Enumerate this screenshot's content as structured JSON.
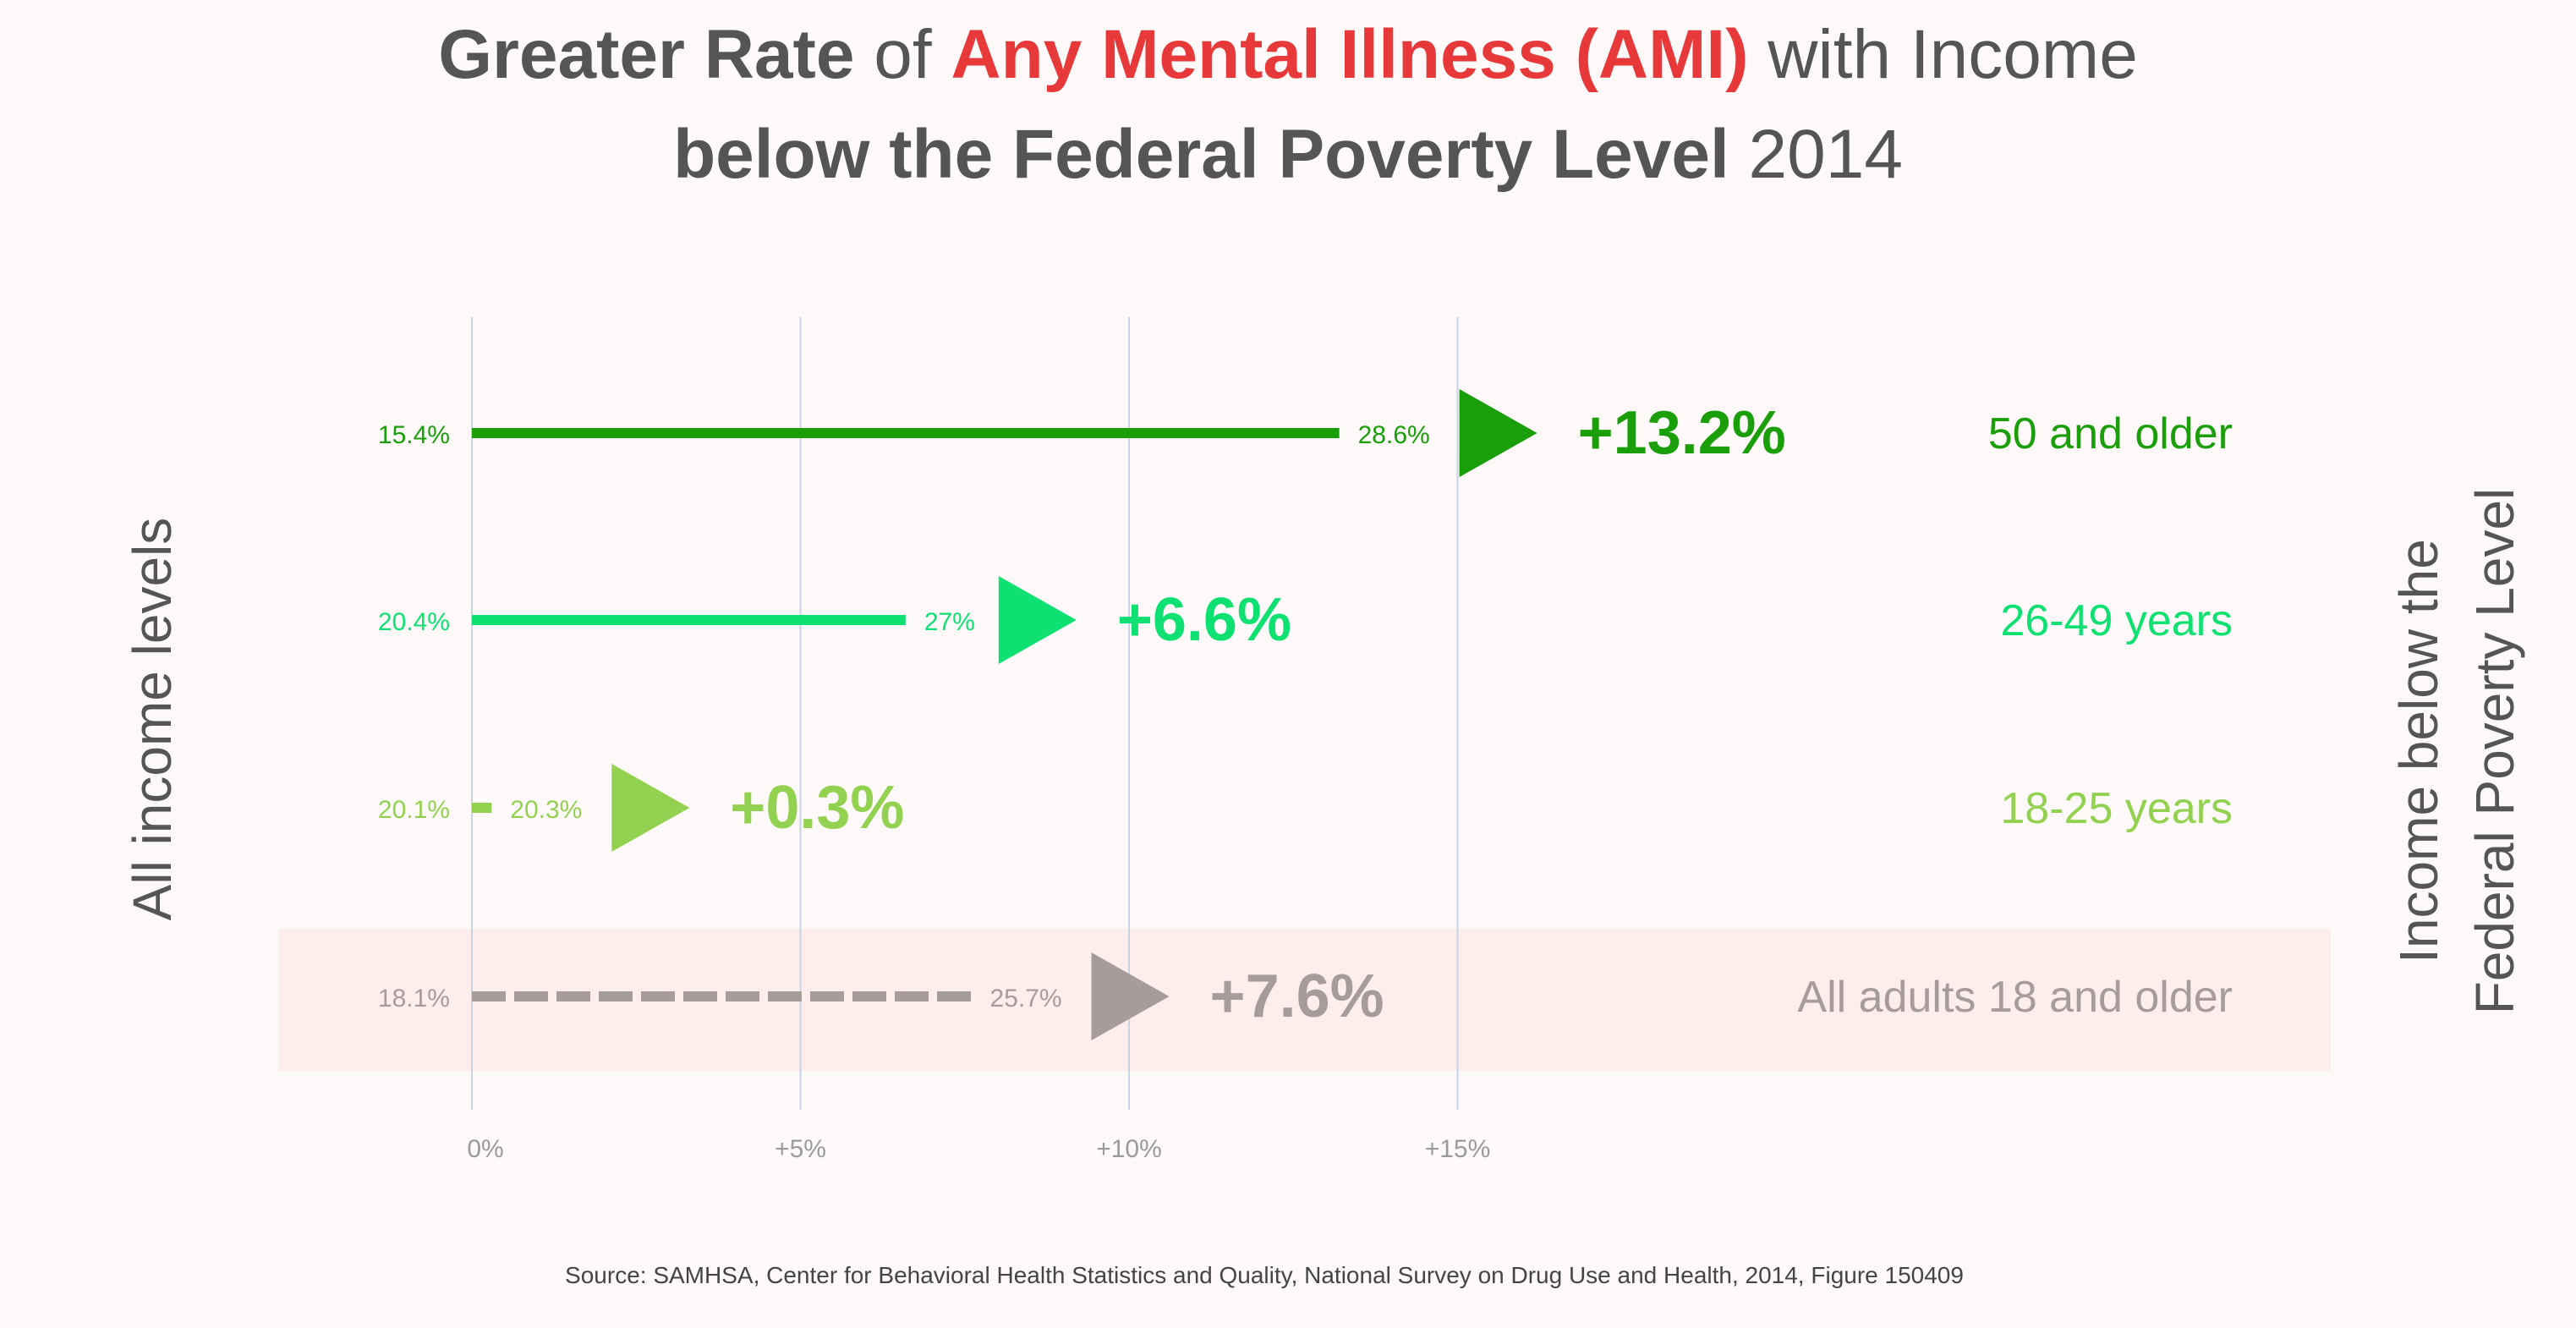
{
  "title": {
    "line1": [
      {
        "text": "Greater Rate",
        "bold": true,
        "color": "#555555"
      },
      {
        "text": " of ",
        "bold": false,
        "color": "#555555"
      },
      {
        "text": "Any Mental Illness (AMI)",
        "bold": true,
        "color": "#e8393a"
      },
      {
        "text": " with Income",
        "bold": false,
        "color": "#555555"
      }
    ],
    "line2": [
      {
        "text": "below the Federal Poverty Level",
        "bold": true,
        "color": "#555555"
      },
      {
        "text": " 2014",
        "bold": false,
        "color": "#555555"
      }
    ]
  },
  "left_axis_label": "All income levels",
  "right_axis_label_line1": "Income below the",
  "right_axis_label_line2": "Federal Poverty Level",
  "source": "Source: SAMHSA, Center for Behavioral Health Statistics and Quality, National Survey on Drug Use and Health, 2014, Figure 150409",
  "chart_data": {
    "type": "bar",
    "xlim": [
      0,
      15
    ],
    "x_ticks": [
      0,
      5,
      10,
      15
    ],
    "x_tick_labels": [
      "0%",
      "+5%",
      "+10%",
      "+15%"
    ],
    "grid": true,
    "rows": [
      {
        "group": "50 and older",
        "all_income_label": "15.4%",
        "all_income": 15.4,
        "below_fpl_label": "28.6%",
        "below_fpl": 28.6,
        "difference": 13.2,
        "difference_label": "+13.2%",
        "color": "#1a9e0a",
        "dashed": false,
        "highlight": false
      },
      {
        "group": "26-49 years",
        "all_income_label": "20.4%",
        "all_income": 20.4,
        "below_fpl_label": "27%",
        "below_fpl": 27.0,
        "difference": 6.6,
        "difference_label": "+6.6%",
        "color": "#0ee172",
        "dashed": false,
        "highlight": false
      },
      {
        "group": "18-25 years",
        "all_income_label": "20.1%",
        "all_income": 20.1,
        "below_fpl_label": "20.3%",
        "below_fpl": 20.3,
        "difference": 0.3,
        "difference_label": "+0.3%",
        "color": "#93d151",
        "dashed": false,
        "highlight": false
      },
      {
        "group": "All adults 18 and older",
        "all_income_label": "18.1%",
        "all_income": 18.1,
        "below_fpl_label": "25.7%",
        "below_fpl": 25.7,
        "difference": 7.6,
        "difference_label": "+7.6%",
        "color": "#a69c9a",
        "dashed": true,
        "highlight": true
      }
    ]
  }
}
